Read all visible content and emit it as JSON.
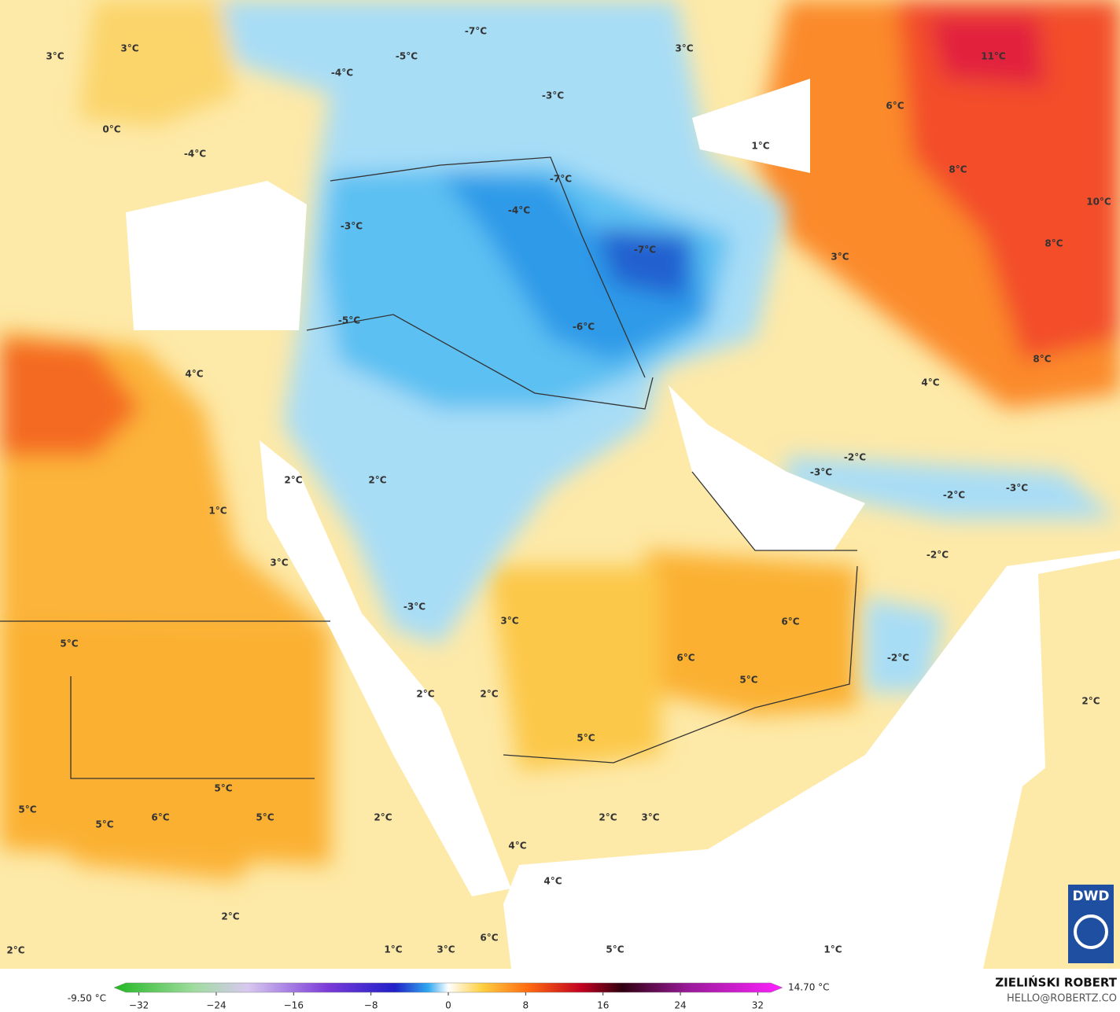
{
  "map": {
    "labels": [
      "3°C",
      "3°C",
      "-7°C",
      "-5°C",
      "-4°C",
      "3°C",
      "11°C",
      "-3°C",
      "0°C",
      "6°C",
      "-4°C",
      "1°C",
      "8°C",
      "-7°C",
      "-4°C",
      "-3°C",
      "10°C",
      "8°C",
      "-7°C",
      "3°C",
      "-5°C",
      "-6°C",
      "4°C",
      "8°C",
      "4°C",
      "-2°C",
      "-3°C",
      "2°C",
      "2°C",
      "-2°C",
      "-3°C",
      "1°C",
      "-2°C",
      "3°C",
      "-3°C",
      "3°C",
      "6°C",
      "5°C",
      "6°C",
      "-2°C",
      "5°C",
      "2°C",
      "2°C",
      "2°C",
      "5°C",
      "5°C",
      "5°C",
      "5°C",
      "6°C",
      "5°C",
      "2°C",
      "2°C",
      "3°C",
      "4°C",
      "4°C",
      "2°C",
      "6°C",
      "2°C",
      "1°C",
      "3°C",
      "5°C",
      "1°C"
    ],
    "logo": "DWD"
  },
  "legend": {
    "min_label": "-9.50 °C",
    "max_label": "14.70 °C",
    "range": [
      -34,
      34
    ],
    "ticks": [
      {
        "value": -32,
        "label": "−32"
      },
      {
        "value": -24,
        "label": "−24"
      },
      {
        "value": -16,
        "label": "−16"
      },
      {
        "value": -8,
        "label": "−8"
      },
      0,
      8,
      16,
      24,
      32
    ]
  },
  "credit": {
    "author": "ZIELIŃSKI ROBERT",
    "contact": "HELLO@ROBERTZ.CO"
  }
}
